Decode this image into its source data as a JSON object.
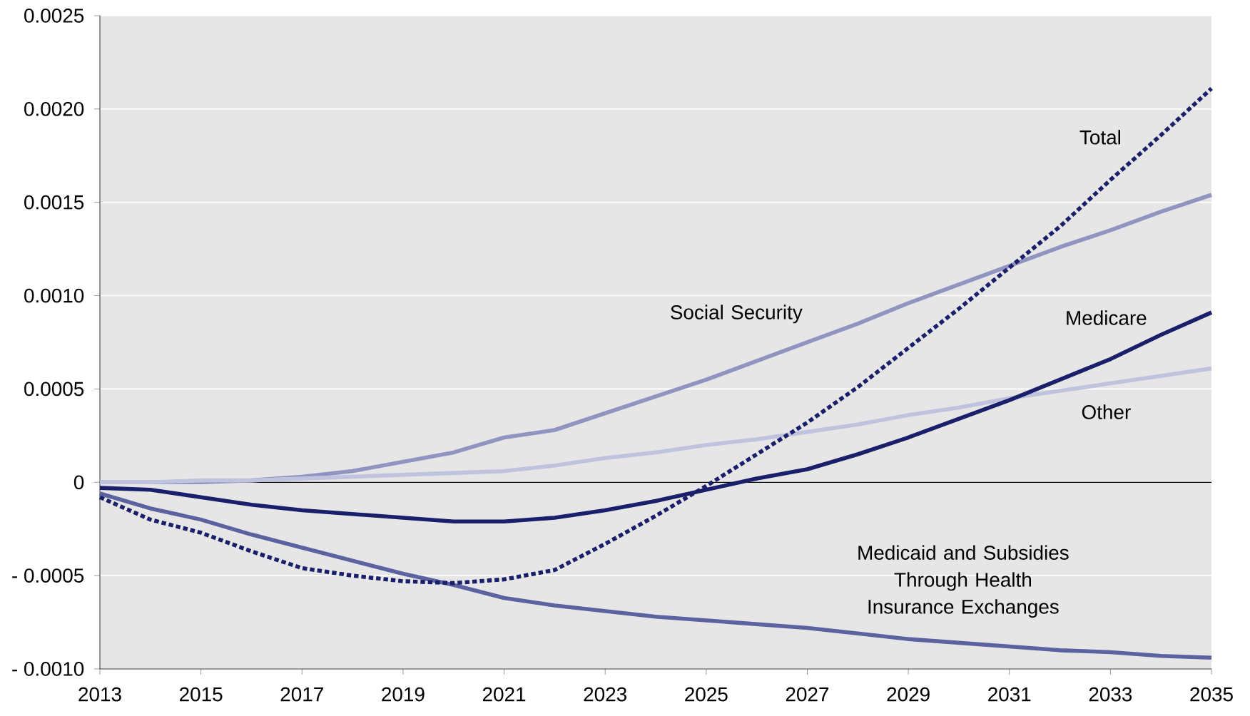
{
  "chart_data": {
    "type": "line",
    "x": [
      2013,
      2014,
      2015,
      2016,
      2017,
      2018,
      2019,
      2020,
      2021,
      2022,
      2023,
      2024,
      2025,
      2026,
      2027,
      2028,
      2029,
      2030,
      2031,
      2032,
      2033,
      2034,
      2035
    ],
    "series": [
      {
        "name": "Social Security",
        "color": "#8f94c0",
        "line_style": "solid",
        "values": [
          0,
          0,
          0,
          1e-05,
          3e-05,
          6e-05,
          0.00011,
          0.00016,
          0.00024,
          0.00028,
          0.00037,
          0.00046,
          0.00055,
          0.00065,
          0.00075,
          0.00085,
          0.00096,
          0.00106,
          0.00116,
          0.00126,
          0.00135,
          0.00145,
          0.00154
        ]
      },
      {
        "name": "Other",
        "color": "#c0c3dd",
        "line_style": "solid",
        "values": [
          0,
          0,
          1e-05,
          1e-05,
          2e-05,
          3e-05,
          4e-05,
          5e-05,
          6e-05,
          9e-05,
          0.00013,
          0.00016,
          0.0002,
          0.00023,
          0.00027,
          0.00031,
          0.00036,
          0.0004,
          0.00045,
          0.00049,
          0.00053,
          0.00057,
          0.00061
        ]
      },
      {
        "name": "Medicare",
        "color": "#1a1f6b",
        "line_style": "solid",
        "values": [
          -3e-05,
          -4e-05,
          -8e-05,
          -0.00012,
          -0.00015,
          -0.00017,
          -0.00019,
          -0.00021,
          -0.00021,
          -0.00019,
          -0.00015,
          -0.0001,
          -4e-05,
          2e-05,
          7e-05,
          0.00015,
          0.00024,
          0.00034,
          0.00044,
          0.00055,
          0.00066,
          0.00079,
          0.00091
        ]
      },
      {
        "name": "Medicaid and Subsidies Through Health Insurance Exchanges",
        "color": "#5c62a0",
        "line_style": "solid",
        "values": [
          -6e-05,
          -0.00014,
          -0.0002,
          -0.00028,
          -0.00035,
          -0.00042,
          -0.00049,
          -0.00055,
          -0.00062,
          -0.00066,
          -0.00069,
          -0.00072,
          -0.00074,
          -0.00076,
          -0.00078,
          -0.00081,
          -0.00084,
          -0.00086,
          -0.00088,
          -0.0009,
          -0.00091,
          -0.00093,
          -0.00094
        ]
      },
      {
        "name": "Total",
        "color": "#1a1f6b",
        "line_style": "dotted",
        "values": [
          -8e-05,
          -0.0002,
          -0.00027,
          -0.00037,
          -0.00046,
          -0.0005,
          -0.00053,
          -0.00054,
          -0.00052,
          -0.00047,
          -0.00033,
          -0.00018,
          -2e-05,
          0.00015,
          0.00032,
          0.00051,
          0.00072,
          0.00093,
          0.00115,
          0.00137,
          0.00162,
          0.00186,
          0.00211
        ]
      }
    ],
    "xlim": [
      2013,
      2035
    ],
    "xticks": [
      2013,
      2015,
      2017,
      2019,
      2021,
      2023,
      2025,
      2027,
      2029,
      2031,
      2033,
      2035
    ],
    "ylim": [
      -0.001,
      0.0025
    ],
    "yticks": [
      {
        "value": -0.001,
        "label": "- 0.0010"
      },
      {
        "value": -0.0005,
        "label": "- 0.0005"
      },
      {
        "value": 0,
        "label": "0"
      },
      {
        "value": 0.0005,
        "label": "0.0005"
      },
      {
        "value": 0.001,
        "label": "0.0010"
      },
      {
        "value": 0.0015,
        "label": "0.0015"
      },
      {
        "value": 0.002,
        "label": "0.0020"
      },
      {
        "value": 0.0025,
        "label": "0.0025"
      }
    ],
    "ref_lines": [
      {
        "axis": "y",
        "value": 0,
        "color": "#000000"
      }
    ],
    "grid": "y",
    "legend": false,
    "marker": "none"
  }
}
